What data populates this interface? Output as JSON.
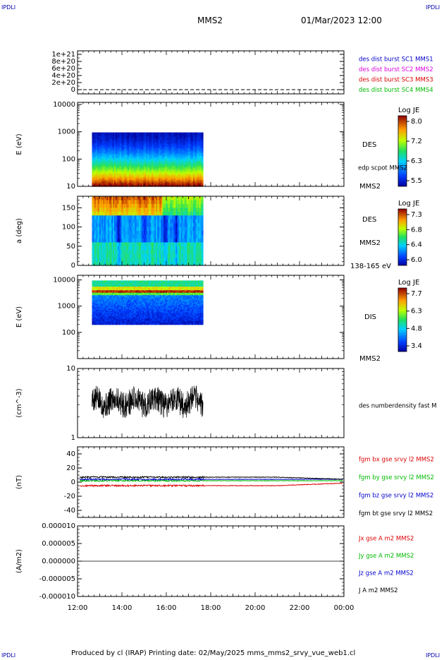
{
  "header": {
    "corner_tl": "IPDLI",
    "corner_tr": "IPDLI",
    "corner_bl": "IPDLI",
    "corner_br": "IPDLI",
    "title": "MMS2",
    "datetime": "01/Mar/2023 12:00"
  },
  "footer": {
    "text": "Produced by cl (IRAP)   Printing date: 02/May/2025   mms_mms2_srvy_vue_web1.cl"
  },
  "colors": {
    "blue": "#0000cc",
    "magenta": "#dd00dd",
    "red": "#dd0000",
    "green": "#00bb00",
    "black": "#000000",
    "corner": "#0000aa"
  },
  "chart_data": [
    {
      "id": "panel1",
      "type": "line",
      "yticks": [
        "1e+21",
        "8e+20",
        "6e+20",
        "4e+20",
        "2e+20",
        "0"
      ],
      "series": [
        {
          "name": "des dist burst SC1 MMS1",
          "color": "blue"
        },
        {
          "name": "des dist burst SC2 MMS2",
          "color": "magenta"
        },
        {
          "name": "des dist burst SC3 MMS3",
          "color": "red"
        },
        {
          "name": "des dist burst SC4 MMS4",
          "color": "green"
        }
      ]
    },
    {
      "id": "panel2",
      "type": "heatmap",
      "ylabel": "E (eV)",
      "yscale": "log",
      "ylim": [
        10,
        12000
      ],
      "yticks": [
        "10000",
        "1000",
        "100",
        "10"
      ],
      "x_range_hours": [
        12.65,
        17.65
      ],
      "instrument": "DES",
      "spacecraft": "MMS2",
      "overlay_label": "edp scpot MMS2",
      "colorbar": {
        "title": "Log JE",
        "ticks": [
          "8.0",
          "7.2",
          "6.3",
          "5.5"
        ]
      }
    },
    {
      "id": "panel3",
      "type": "heatmap",
      "ylabel": "a (deg)",
      "ylim": [
        0,
        180
      ],
      "yticks": [
        "150",
        "100",
        "50",
        "0"
      ],
      "x_range_hours": [
        12.65,
        17.65
      ],
      "instrument": "DES",
      "spacecraft": "MMS2",
      "energy_range": "138-165 eV",
      "colorbar": {
        "title": "Log JE",
        "ticks": [
          "7.3",
          "6.8",
          "6.4",
          "6.0"
        ]
      }
    },
    {
      "id": "panel4",
      "type": "heatmap",
      "ylabel": "E (eV)",
      "yscale": "log",
      "ylim": [
        10,
        15000
      ],
      "yticks": [
        "10000",
        "1000",
        "100"
      ],
      "x_range_hours": [
        12.65,
        17.65
      ],
      "instrument": "DIS",
      "spacecraft": "MMS2",
      "colorbar": {
        "title": "Log JE",
        "ticks": [
          "7.7",
          "6.3",
          "4.8",
          "3.4"
        ]
      }
    },
    {
      "id": "panel5",
      "type": "line",
      "ylabel": "(cm^-3)",
      "yscale": "log",
      "ylim": [
        1,
        10
      ],
      "yticks": [
        "10",
        "1"
      ],
      "series": [
        {
          "name": "des numberdensity fast M",
          "color": "black",
          "x_range_hours": [
            12.65,
            17.65
          ],
          "typical_value": 3.3
        }
      ]
    },
    {
      "id": "panel6",
      "type": "line",
      "ylabel": "(nT)",
      "ylim": [
        -50,
        50
      ],
      "yticks": [
        "40",
        "20",
        "0",
        "-20",
        "-40"
      ],
      "series": [
        {
          "name": "fgm bx gse srvy l2 MMS2",
          "color": "red",
          "typical_value": -5
        },
        {
          "name": "fgm by gse srvy l2 MMS2",
          "color": "green",
          "typical_value": 2
        },
        {
          "name": "fgm bz gse srvy l2 MMS2",
          "color": "blue",
          "typical_value": 4
        },
        {
          "name": "fgm bt gse srvy l2 MMS2",
          "color": "black",
          "typical_value": 7
        }
      ]
    },
    {
      "id": "panel7",
      "type": "line",
      "ylabel": "(A/m2)",
      "ylim": [
        -1e-05,
        1e-05
      ],
      "yticks": [
        "0.000010",
        "0.000005",
        "0.000000",
        "-0.000005",
        "-0.000010"
      ],
      "series": [
        {
          "name": "Jx gse A m2 MMS2",
          "color": "red"
        },
        {
          "name": "Jy gse A m2 MMS2",
          "color": "green"
        },
        {
          "name": "Jz gse A m2 MMS2",
          "color": "blue"
        },
        {
          "name": "J A m2 MMS2",
          "color": "black"
        }
      ]
    }
  ],
  "xaxis": {
    "range_hours": [
      12,
      24
    ],
    "ticks": [
      "12:00",
      "14:00",
      "16:00",
      "18:00",
      "20:00",
      "22:00",
      "00:00"
    ]
  }
}
